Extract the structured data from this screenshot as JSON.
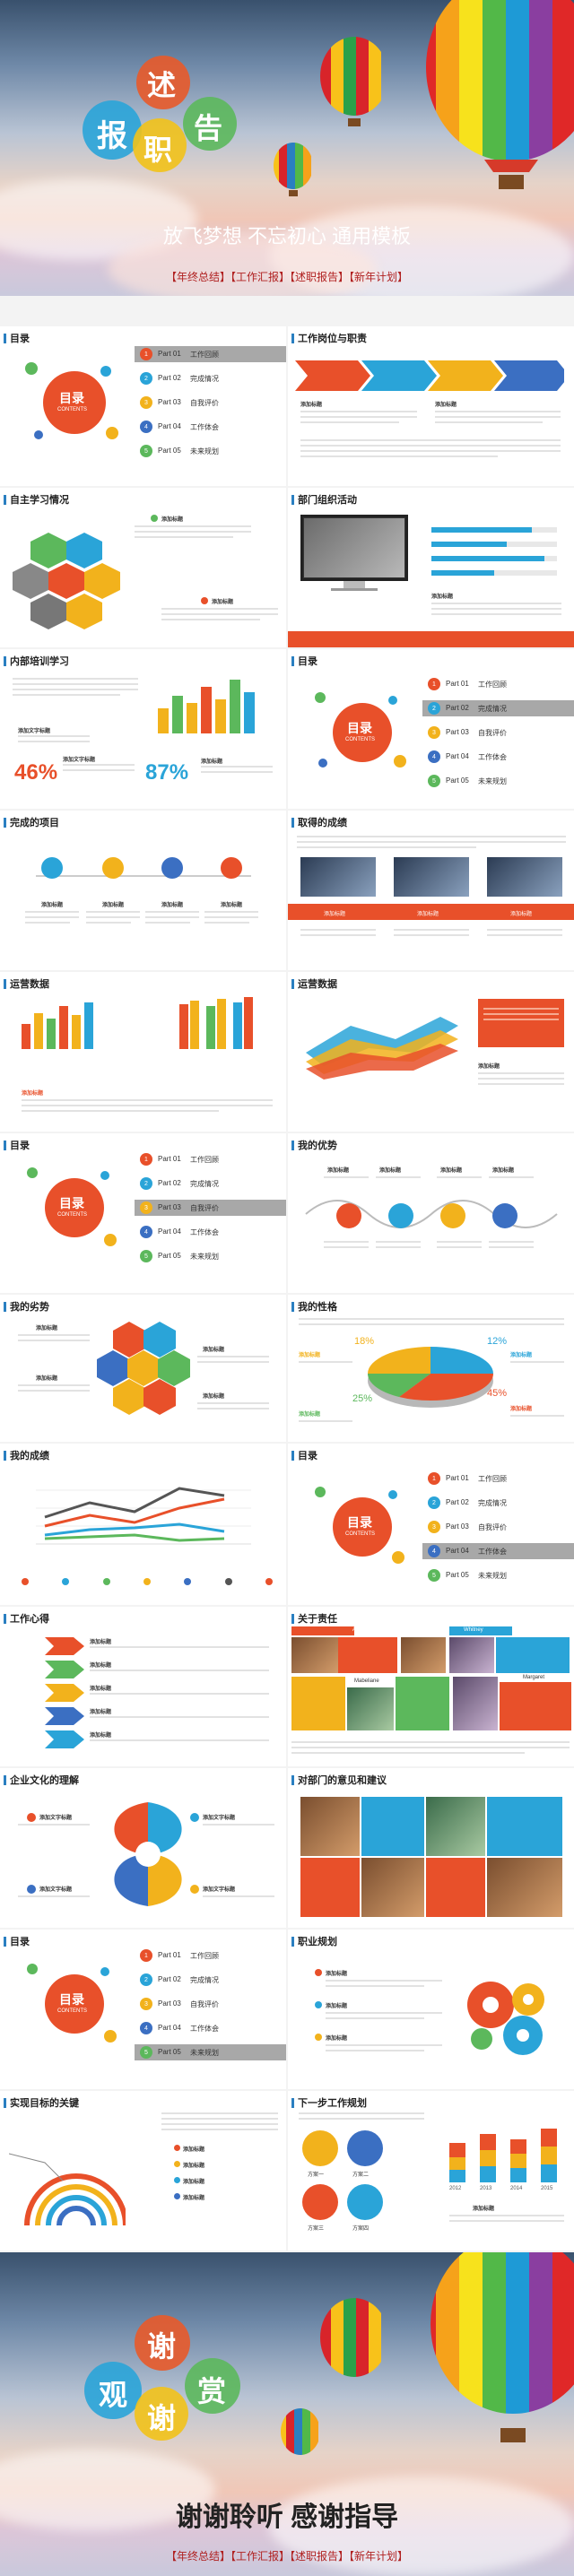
{
  "cover": {
    "ch1": "报",
    "ch2": "述",
    "ch3": "职",
    "ch4": "告",
    "subtitle": "放飞梦想 不忘初心 通用模板",
    "tags": "【年终总结】【工作汇报】【述职报告】【新年计划】"
  },
  "ending": {
    "ch1": "观",
    "ch2": "谢",
    "ch3": "谢",
    "ch4": "赏",
    "title": "谢谢聆听 感谢指导",
    "tags": "【年终总结】【工作汇报】【述职报告】【新年计划】"
  },
  "toc": {
    "title": "目录",
    "circle_main": "目录",
    "circle_sub": "CONTENTS",
    "parts": [
      {
        "p": "Part 01",
        "t": "工作回顾"
      },
      {
        "p": "Part 02",
        "t": "完成情况"
      },
      {
        "p": "Part 03",
        "t": "自我评价"
      },
      {
        "p": "Part 04",
        "t": "工作体会"
      },
      {
        "p": "Part 05",
        "t": "未来规划"
      }
    ],
    "colors": [
      "#e8502a",
      "#2aa4d8",
      "#f2b21c",
      "#3b6fc2",
      "#5cb85c"
    ]
  },
  "slides": {
    "gwzz": "工作岗位与职责",
    "zzxx": "自主学习情况",
    "bmzz": "部门组织活动",
    "nbpx": "内部培训学习",
    "wcxm": "完成的项目",
    "hdcj": "取得的成绩",
    "yysj": "运营数据",
    "yysj2": "运营数据",
    "wdys": "我的优势",
    "wdls": "我的劣势",
    "wdxg": "我的性格",
    "wdcj": "我的成绩",
    "gzxd": "工作心得",
    "gyzr": "关于责任",
    "qywh": "企业文化的理解",
    "dgsyj": "对部门的意见和建议",
    "zygh": "职业规划",
    "sxmb": "实现目标的关键",
    "xybgz": "下一步工作规划"
  },
  "texts": {
    "addtitle": "添加标题",
    "addtitle2": "添加文字标题",
    "pct46": "46%",
    "pct87": "87%",
    "pct18": "18%",
    "pct12": "12%",
    "pct25": "25%",
    "pct45": "45%",
    "yr1": "2012",
    "yr2": "2013",
    "yr3": "2014",
    "yr4": "2015",
    "fa1": "方案一",
    "fa2": "方案二",
    "fa3": "方案三",
    "fa4": "方案四",
    "n1": "Amanda",
    "n2": "Whitney",
    "n3": "Mabeliane",
    "n4": "Margaret"
  }
}
